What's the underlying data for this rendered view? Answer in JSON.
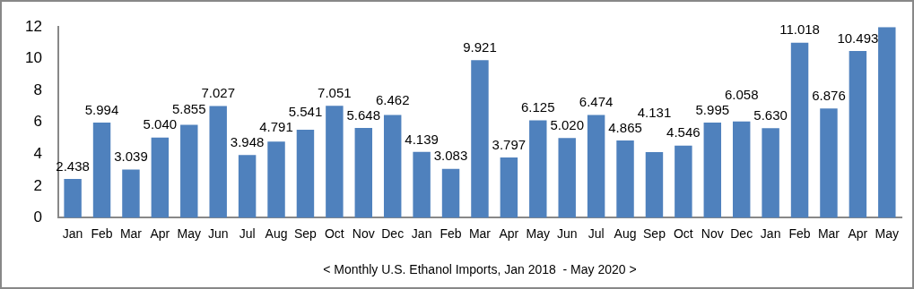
{
  "chart_data": {
    "type": "bar",
    "xlabel": "< Monthly U.S. Ethanol Imports, Jan 2018  - May 2020 >",
    "categories": [
      "Jan",
      "Feb",
      "Mar",
      "Apr",
      "May",
      "Jun",
      "Jul",
      "Aug",
      "Sep",
      "Oct",
      "Nov",
      "Dec",
      "Jan",
      "Feb",
      "Mar",
      "Apr",
      "May",
      "Jun",
      "Jul",
      "Aug",
      "Sep",
      "Oct",
      "Nov",
      "Dec",
      "Jan",
      "Feb",
      "Mar",
      "Apr",
      "May"
    ],
    "values": [
      2.438,
      5.994,
      3.039,
      5.04,
      5.855,
      7.027,
      3.948,
      4.791,
      5.541,
      7.051,
      5.648,
      6.462,
      4.139,
      3.083,
      9.921,
      3.797,
      6.125,
      5.02,
      6.474,
      4.865,
      4.131,
      4.546,
      5.995,
      6.058,
      5.63,
      11.018,
      6.876,
      10.493,
      12
    ],
    "value_labels": [
      "2.438",
      "5.994",
      "3.039",
      "5.040",
      "5.855",
      "7.027",
      "3.948",
      "4.791",
      "5.541",
      "7.051",
      "5.648",
      "6.462",
      "4.139",
      "3.083",
      "9.921",
      "3.797",
      "6.125",
      "5.020",
      "6.474",
      "4.865",
      "4.131",
      "4.546",
      "5.995",
      "6.058",
      "5.630",
      "11.018",
      "6.876",
      "10.493",
      null
    ],
    "color": "#4f81bd",
    "ylim": [
      0,
      12
    ],
    "yticks": [
      0,
      2,
      4,
      6,
      8,
      10,
      12
    ],
    "grid": false,
    "legend": false
  }
}
